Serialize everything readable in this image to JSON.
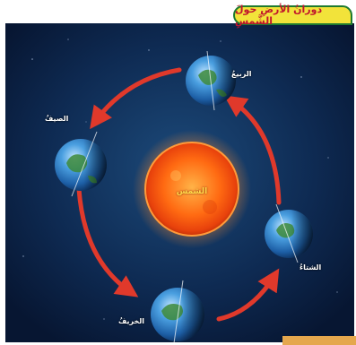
{
  "header": {
    "top_text": "",
    "title": "دورانُ الأرضِ حولَ الشَّمسِ"
  },
  "diagram": {
    "center_label": "الشمس",
    "seasons": [
      {
        "id": "spring",
        "label": "الربيعُ"
      },
      {
        "id": "summer",
        "label": "الصيفُ"
      },
      {
        "id": "autumn",
        "label": "الخريفُ"
      },
      {
        "id": "winter",
        "label": "الشتاءُ"
      }
    ],
    "colors": {
      "background": "#0a1f3e",
      "orbit_arrow": "#e0392b",
      "sun": "#ff7a18",
      "title_fill": "#f2e33a",
      "title_border": "#1e7a2f",
      "title_text": "#c0152c"
    }
  }
}
